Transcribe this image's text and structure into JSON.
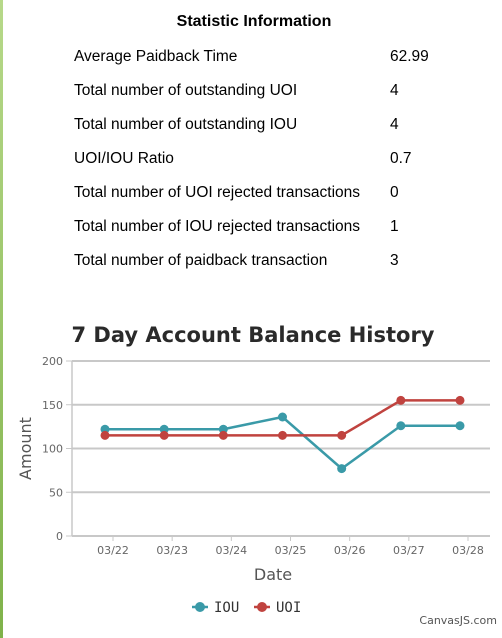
{
  "statistics": {
    "title": "Statistic Information",
    "rows": [
      {
        "label": "Average Paidback Time",
        "value": "62.99"
      },
      {
        "label": "Total number of outstanding UOI",
        "value": "4"
      },
      {
        "label": "Total number of outstanding IOU",
        "value": "4"
      },
      {
        "label": "UOI/IOU Ratio",
        "value": "0.7"
      },
      {
        "label": "Total number of UOI rejected transactions",
        "value": "0"
      },
      {
        "label": "Total number of IOU rejected transactions",
        "value": "1"
      },
      {
        "label": "Total number of paidback transaction",
        "value": "3"
      }
    ]
  },
  "chart_data": {
    "type": "line",
    "title": "7 Day Account Balance History",
    "xlabel": "Date",
    "ylabel": "Amount",
    "categories": [
      "03/22",
      "03/23",
      "03/24",
      "03/25",
      "03/26",
      "03/27",
      "03/28"
    ],
    "ylim": [
      0,
      200
    ],
    "yticks": [
      0,
      50,
      100,
      150,
      200
    ],
    "grid": true,
    "legend_position": "bottom",
    "series": [
      {
        "name": "IOU",
        "color": "#3a9aa8",
        "values": [
          122,
          122,
          122,
          136,
          77,
          126,
          126
        ]
      },
      {
        "name": "UOI",
        "color": "#c0433f",
        "values": [
          115,
          115,
          115,
          115,
          115,
          155,
          155
        ]
      }
    ],
    "credit": "CanvasJS.com"
  }
}
